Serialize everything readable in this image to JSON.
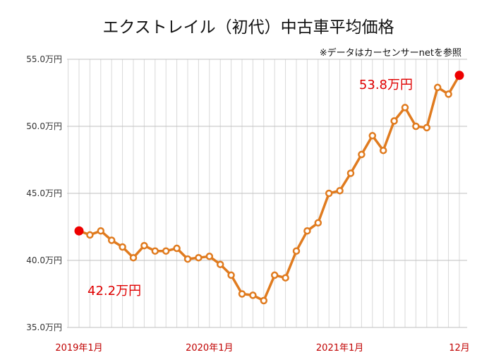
{
  "chart_data": {
    "type": "line",
    "title": "エクストレイル（初代）中古車平均価格",
    "note": "※データはカーセンサーnetを参照",
    "yticks": [
      "55.0万円",
      "50.0万円",
      "45.0万円",
      "40.0万円",
      "35.0万円"
    ],
    "ylim": [
      35.0,
      55.0
    ],
    "xtick_labels": [
      {
        "label": "2019年1月",
        "index": 0
      },
      {
        "label": "2020年1月",
        "index": 12
      },
      {
        "label": "2021年1月",
        "index": 24
      },
      {
        "label": "12月",
        "index": 35
      }
    ],
    "grid": true,
    "series": [
      {
        "values": [
          42.2,
          41.9,
          42.2,
          41.5,
          41.0,
          40.2,
          41.1,
          40.7,
          40.7,
          40.9,
          40.1,
          40.2,
          40.3,
          39.7,
          38.9,
          37.5,
          37.4,
          37.0,
          38.9,
          38.7,
          40.7,
          42.2,
          42.8,
          45.0,
          45.2,
          46.5,
          47.9,
          49.3,
          48.2,
          50.4,
          51.4,
          50.0,
          49.9,
          52.9,
          52.4,
          53.8
        ]
      }
    ],
    "annotations": [
      {
        "text": "42.2万円",
        "index": 0
      },
      {
        "text": "53.8万円",
        "index": 35
      }
    ],
    "colors": {
      "line": "#E07B1F",
      "highlight": "#EE0000",
      "grid": "#d9d9d9",
      "axis_label": "#c00000"
    }
  }
}
